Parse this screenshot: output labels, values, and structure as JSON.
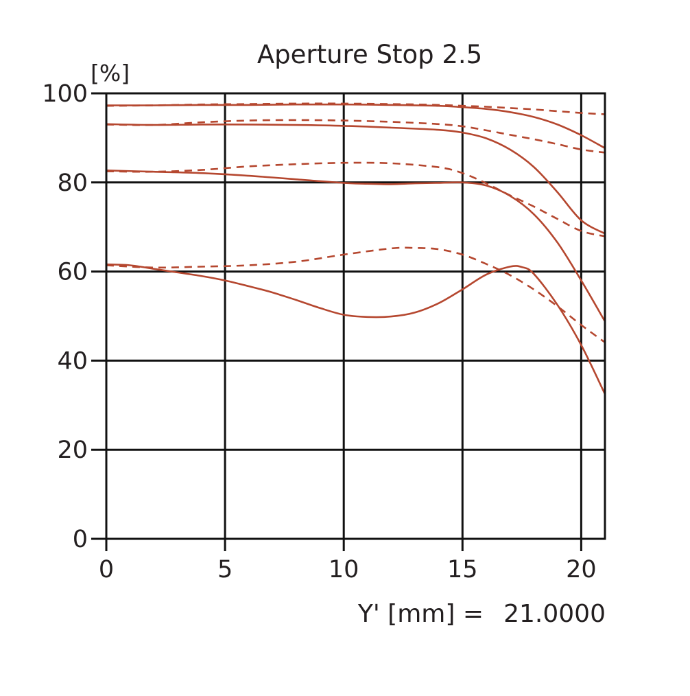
{
  "chart_data": {
    "type": "line",
    "title": "Aperture Stop 2.5",
    "ylabel": "[%]",
    "xlabel": "Y' [mm] =",
    "xlabel_value": "21.0000",
    "xlim": [
      0,
      21
    ],
    "ylim": [
      0,
      100
    ],
    "xticks": [
      0,
      5,
      10,
      15,
      20
    ],
    "yticks": [
      0,
      20,
      40,
      60,
      80,
      100
    ],
    "grid": true,
    "color": "#b5472f",
    "series": [
      {
        "style": "solid",
        "x": [
          0,
          2,
          4,
          6,
          8,
          10,
          12,
          14,
          15,
          16,
          17,
          18,
          19,
          20,
          21
        ],
        "y": [
          97.3,
          97.3,
          97.4,
          97.4,
          97.5,
          97.5,
          97.4,
          97.2,
          96.9,
          96.5,
          95.8,
          94.7,
          93.0,
          90.6,
          87.7
        ]
      },
      {
        "style": "dashed",
        "x": [
          0,
          2,
          4,
          6,
          8,
          10,
          12,
          14,
          15,
          16,
          17,
          18,
          19,
          20,
          21
        ],
        "y": [
          97.2,
          97.3,
          97.5,
          97.6,
          97.7,
          97.7,
          97.6,
          97.4,
          97.2,
          97.0,
          96.7,
          96.4,
          96.0,
          95.6,
          95.3
        ]
      },
      {
        "style": "solid",
        "x": [
          0,
          2,
          4,
          6,
          8,
          10,
          12,
          14,
          15,
          16,
          17,
          18,
          19,
          20,
          21
        ],
        "y": [
          93.1,
          92.9,
          93.0,
          93.0,
          92.9,
          92.7,
          92.3,
          91.8,
          91.2,
          89.9,
          87.4,
          83.5,
          77.8,
          71.5,
          68.5
        ]
      },
      {
        "style": "dashed",
        "x": [
          0,
          2,
          4,
          6,
          8,
          10,
          12,
          14,
          15,
          16,
          17,
          18,
          19,
          20,
          21
        ],
        "y": [
          93.0,
          92.9,
          93.5,
          93.9,
          94.0,
          93.9,
          93.6,
          93.1,
          92.6,
          91.7,
          90.7,
          89.7,
          88.6,
          87.4,
          86.7
        ]
      },
      {
        "style": "solid",
        "x": [
          0,
          2,
          4,
          6,
          8,
          10,
          11,
          12,
          13,
          14,
          15,
          16,
          17,
          18,
          19,
          20,
          21
        ],
        "y": [
          82.7,
          82.4,
          82.1,
          81.5,
          80.7,
          79.9,
          79.7,
          79.6,
          79.8,
          79.9,
          80.0,
          79.3,
          77.0,
          72.9,
          66.5,
          58.0,
          48.8
        ]
      },
      {
        "style": "dashed",
        "x": [
          0,
          2,
          4,
          6,
          8,
          10,
          12,
          14,
          15,
          16,
          17,
          18,
          19,
          20,
          21
        ],
        "y": [
          82.5,
          82.4,
          82.8,
          83.6,
          84.1,
          84.4,
          84.3,
          83.4,
          82.1,
          79.8,
          77.1,
          74.6,
          71.8,
          69.1,
          67.9
        ]
      },
      {
        "style": "solid",
        "x": [
          0,
          1,
          2,
          3,
          4,
          5,
          6,
          7,
          8,
          9,
          10,
          11,
          12,
          13,
          14,
          15,
          16,
          17,
          17.5,
          18,
          19,
          20,
          21
        ],
        "y": [
          61.6,
          61.4,
          60.6,
          59.8,
          59.0,
          58.0,
          56.7,
          55.3,
          53.6,
          51.8,
          50.3,
          49.8,
          49.9,
          50.8,
          52.9,
          56.0,
          59.3,
          61.1,
          61.0,
          59.5,
          52.5,
          43.5,
          32.5
        ]
      },
      {
        "style": "dashed",
        "x": [
          0,
          2,
          4,
          6,
          8,
          10,
          12,
          13,
          14,
          15,
          16,
          17,
          18,
          19,
          20,
          21
        ],
        "y": [
          61.4,
          60.9,
          61.1,
          61.4,
          62.2,
          63.8,
          65.2,
          65.3,
          65.0,
          63.8,
          61.7,
          59.2,
          56.0,
          52.2,
          48.0,
          44.1
        ]
      }
    ]
  }
}
